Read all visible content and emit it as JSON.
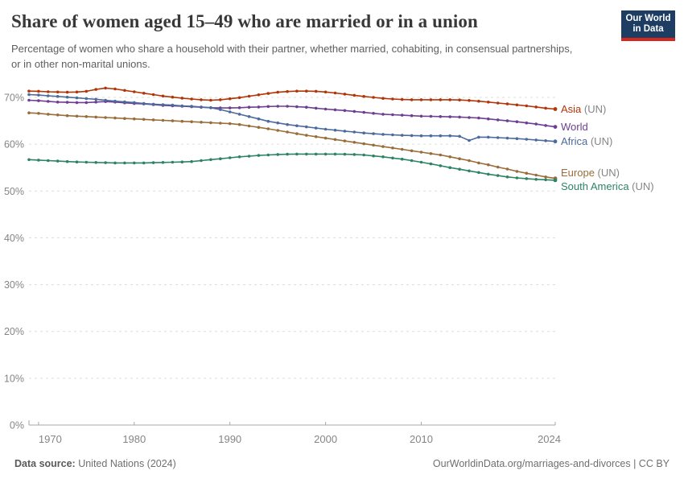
{
  "header": {
    "title": "Share of women aged 15–49 who are married or in a union",
    "subtitle": "Percentage of women who share a household with their partner, whether married, cohabiting, in consensual partnerships, or in other non-marital unions.",
    "logo": {
      "line1": "Our World",
      "line2": "in Data",
      "bg": "#1D3D63",
      "stripe": "#D5271D"
    }
  },
  "footer": {
    "source_label": "Data source:",
    "source_value": " United Nations (2024)",
    "right_text": "OurWorldinData.org/marriages-and-divorces | CC BY"
  },
  "chart_data": {
    "type": "line",
    "title": "Share of women aged 15–49 who are married or in a union",
    "xlabel": "",
    "ylabel": "",
    "y_unit": "%",
    "xlim": [
      1969,
      2024
    ],
    "ylim": [
      0,
      75
    ],
    "grid": "dashed-horizontal",
    "legend_position": "right-of-line-ends",
    "x_ticks": [
      1970,
      1980,
      1990,
      2000,
      2010,
      2024
    ],
    "y_ticks": [
      0,
      10,
      20,
      30,
      40,
      50,
      60,
      70
    ],
    "colors": {
      "grid": "#DCDCDC",
      "axis": "#A7A7A7",
      "tick": "#858585"
    },
    "x": [
      1969,
      1970,
      1971,
      1972,
      1973,
      1974,
      1975,
      1976,
      1977,
      1978,
      1979,
      1980,
      1981,
      1982,
      1983,
      1984,
      1985,
      1986,
      1987,
      1988,
      1989,
      1990,
      1991,
      1992,
      1993,
      1994,
      1995,
      1996,
      1997,
      1998,
      1999,
      2000,
      2001,
      2002,
      2003,
      2004,
      2005,
      2006,
      2007,
      2008,
      2009,
      2010,
      2011,
      2012,
      2013,
      2014,
      2015,
      2016,
      2017,
      2018,
      2019,
      2020,
      2021,
      2022,
      2023,
      2024
    ],
    "series": [
      {
        "name": "Asia",
        "suffix": "(UN)",
        "color": "#B13507",
        "values": [
          71.35,
          71.3,
          71.2,
          71.15,
          71.1,
          71.15,
          71.3,
          71.7,
          72.0,
          71.8,
          71.5,
          71.2,
          70.9,
          70.6,
          70.3,
          70.05,
          69.85,
          69.65,
          69.5,
          69.4,
          69.5,
          69.7,
          69.95,
          70.25,
          70.55,
          70.85,
          71.1,
          71.25,
          71.35,
          71.35,
          71.3,
          71.15,
          70.95,
          70.7,
          70.45,
          70.2,
          70.0,
          69.8,
          69.65,
          69.55,
          69.5,
          69.5,
          69.5,
          69.5,
          69.5,
          69.45,
          69.35,
          69.2,
          69.0,
          68.8,
          68.6,
          68.4,
          68.2,
          67.95,
          67.7,
          67.5
        ]
      },
      {
        "name": "World",
        "suffix": "",
        "color": "#6D3E91",
        "values": [
          69.4,
          69.3,
          69.15,
          69.0,
          68.95,
          68.9,
          68.9,
          69.0,
          69.1,
          69.0,
          68.85,
          68.7,
          68.6,
          68.45,
          68.3,
          68.2,
          68.1,
          68.0,
          67.9,
          67.8,
          67.75,
          67.75,
          67.8,
          67.9,
          67.95,
          68.05,
          68.1,
          68.1,
          68.0,
          67.9,
          67.7,
          67.5,
          67.35,
          67.2,
          67.0,
          66.8,
          66.6,
          66.4,
          66.3,
          66.2,
          66.1,
          66.0,
          65.95,
          65.9,
          65.85,
          65.8,
          65.7,
          65.6,
          65.4,
          65.2,
          65.0,
          64.8,
          64.55,
          64.3,
          64.0,
          63.7
        ]
      },
      {
        "name": "Africa",
        "suffix": "(UN)",
        "color": "#4C6A9C",
        "values": [
          70.6,
          70.5,
          70.35,
          70.2,
          70.05,
          69.9,
          69.75,
          69.6,
          69.4,
          69.2,
          69.05,
          68.9,
          68.7,
          68.55,
          68.45,
          68.35,
          68.2,
          68.1,
          67.95,
          67.8,
          67.4,
          66.9,
          66.4,
          65.9,
          65.4,
          64.9,
          64.55,
          64.2,
          63.95,
          63.7,
          63.45,
          63.2,
          63.0,
          62.8,
          62.6,
          62.4,
          62.25,
          62.1,
          62.0,
          61.9,
          61.85,
          61.8,
          61.8,
          61.8,
          61.8,
          61.7,
          60.8,
          61.5,
          61.5,
          61.4,
          61.3,
          61.2,
          61.05,
          60.9,
          60.75,
          60.6
        ]
      },
      {
        "name": "Europe",
        "suffix": "(UN)",
        "color": "#996D39",
        "values": [
          66.7,
          66.6,
          66.4,
          66.25,
          66.1,
          66.0,
          65.9,
          65.8,
          65.7,
          65.6,
          65.5,
          65.4,
          65.3,
          65.2,
          65.1,
          65.0,
          64.9,
          64.8,
          64.7,
          64.6,
          64.5,
          64.4,
          64.2,
          63.9,
          63.6,
          63.3,
          62.95,
          62.6,
          62.25,
          61.9,
          61.6,
          61.3,
          61.0,
          60.7,
          60.4,
          60.1,
          59.8,
          59.5,
          59.2,
          58.9,
          58.6,
          58.3,
          58.0,
          57.7,
          57.3,
          56.9,
          56.5,
          56.0,
          55.6,
          55.1,
          54.7,
          54.2,
          53.8,
          53.4,
          53.0,
          52.7
        ]
      },
      {
        "name": "South America",
        "suffix": "(UN)",
        "color": "#2C8465",
        "values": [
          56.7,
          56.6,
          56.5,
          56.4,
          56.3,
          56.2,
          56.15,
          56.1,
          56.05,
          56.0,
          56.0,
          56.0,
          56.0,
          56.05,
          56.1,
          56.15,
          56.2,
          56.3,
          56.5,
          56.7,
          56.9,
          57.1,
          57.3,
          57.45,
          57.6,
          57.7,
          57.8,
          57.85,
          57.9,
          57.9,
          57.9,
          57.9,
          57.9,
          57.85,
          57.8,
          57.7,
          57.5,
          57.3,
          57.05,
          56.8,
          56.5,
          56.15,
          55.8,
          55.4,
          55.0,
          54.65,
          54.3,
          53.95,
          53.6,
          53.3,
          53.0,
          52.8,
          52.65,
          52.5,
          52.4,
          52.3
        ]
      }
    ]
  }
}
